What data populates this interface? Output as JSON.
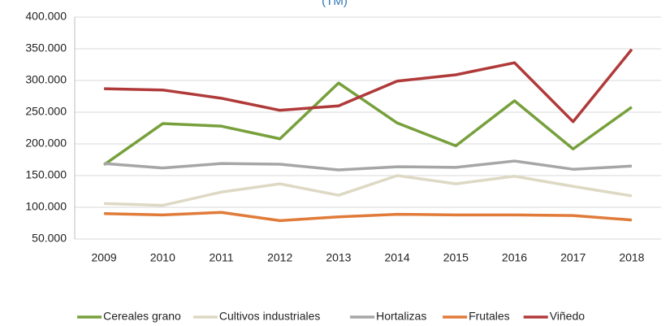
{
  "chart_data": {
    "type": "line",
    "title": "(TM)",
    "categories": [
      "2009",
      "2010",
      "2011",
      "2012",
      "2013",
      "2014",
      "2015",
      "2016",
      "2017",
      "2018"
    ],
    "series": [
      {
        "name": "Cereales grano",
        "color": "#77a03c",
        "values": [
          167000,
          232000,
          228000,
          208000,
          296000,
          233000,
          197000,
          268000,
          192000,
          258000
        ]
      },
      {
        "name": "Cultivos industriales",
        "color": "#ddd9c4",
        "values": [
          106000,
          103000,
          124000,
          137000,
          119000,
          150000,
          137000,
          149000,
          133000,
          118000
        ]
      },
      {
        "name": "Hortalizas",
        "color": "#a6a6a6",
        "values": [
          169000,
          162000,
          169000,
          168000,
          159000,
          164000,
          163000,
          173000,
          160000,
          165000
        ]
      },
      {
        "name": "Frutales",
        "color": "#e07b39",
        "values": [
          90000,
          88000,
          92000,
          79000,
          85000,
          89000,
          88000,
          88000,
          87000,
          80000
        ]
      },
      {
        "name": "Viñedo",
        "color": "#b03a3a",
        "values": [
          287000,
          285000,
          272000,
          253000,
          260000,
          299000,
          309000,
          328000,
          235000,
          349000
        ]
      }
    ],
    "ylim": [
      50000,
      400000
    ],
    "yticks": [
      {
        "value": 50000,
        "label": "50.000"
      },
      {
        "value": 100000,
        "label": "100.000"
      },
      {
        "value": 150000,
        "label": "150.000"
      },
      {
        "value": 200000,
        "label": "200.000"
      },
      {
        "value": 250000,
        "label": "250.000"
      },
      {
        "value": 300000,
        "label": "300.000"
      },
      {
        "value": 350000,
        "label": "350.000"
      },
      {
        "value": 400000,
        "label": "400.000"
      }
    ],
    "grid": true,
    "legend": "bottom"
  }
}
